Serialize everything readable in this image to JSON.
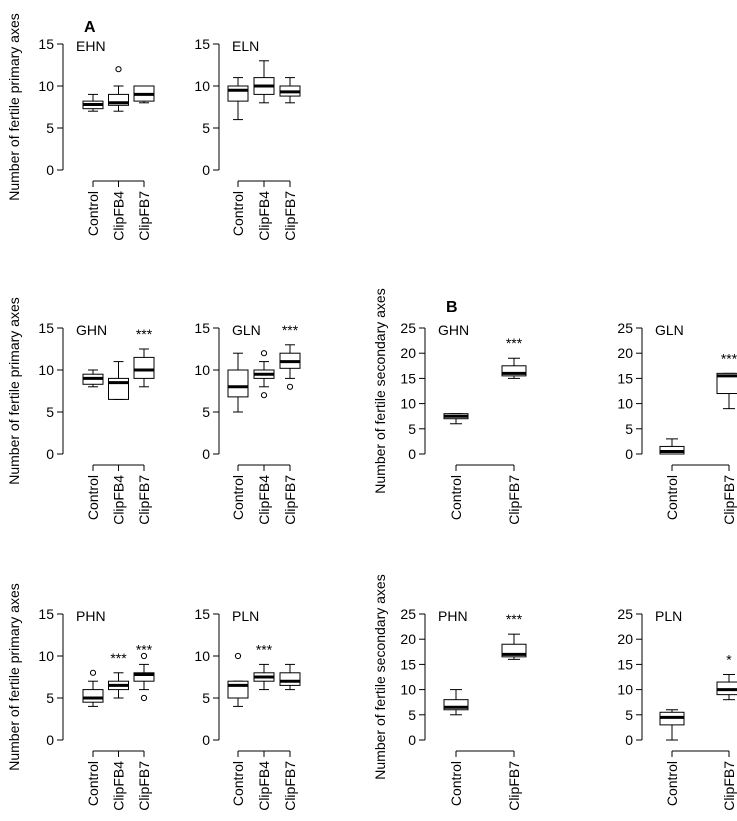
{
  "figure": {
    "section_a_label": "A",
    "section_b_label": "B"
  },
  "chart_data": [
    {
      "type": "box",
      "panel": "EHN",
      "ylim": [
        0,
        15
      ],
      "yticks": [
        0,
        5,
        10,
        15
      ],
      "ylabel": "Number of fertile primary axes",
      "categories": [
        "Control",
        "ClipFB4",
        "ClipFB7"
      ],
      "boxes": [
        {
          "min": 7,
          "q1": 7.3,
          "median": 7.8,
          "q3": 8.2,
          "max": 9,
          "outliers": []
        },
        {
          "min": 7,
          "q1": 7.7,
          "median": 8,
          "q3": 9,
          "max": 10,
          "outliers": [
            12
          ]
        },
        {
          "min": 8,
          "q1": 8.2,
          "median": 9,
          "q3": 10,
          "max": 10,
          "outliers": []
        }
      ],
      "significance": [
        "",
        "",
        ""
      ]
    },
    {
      "type": "box",
      "panel": "ELN",
      "ylim": [
        0,
        15
      ],
      "yticks": [
        0,
        5,
        10,
        15
      ],
      "ylabel": "",
      "categories": [
        "Control",
        "ClipFB4",
        "ClipFB7"
      ],
      "boxes": [
        {
          "min": 6,
          "q1": 8.2,
          "median": 9.5,
          "q3": 10,
          "max": 11,
          "outliers": []
        },
        {
          "min": 8,
          "q1": 9,
          "median": 10,
          "q3": 11,
          "max": 13,
          "outliers": []
        },
        {
          "min": 8,
          "q1": 8.8,
          "median": 9.3,
          "q3": 10,
          "max": 11,
          "outliers": []
        }
      ],
      "significance": [
        "",
        "",
        ""
      ]
    },
    {
      "type": "box",
      "panel": "GHN",
      "ylim": [
        0,
        15
      ],
      "yticks": [
        0,
        5,
        10,
        15
      ],
      "ylabel": "Number of fertile primary axes",
      "categories": [
        "Control",
        "ClipFB4",
        "ClipFB7"
      ],
      "boxes": [
        {
          "min": 8,
          "q1": 8.3,
          "median": 9,
          "q3": 9.5,
          "max": 10,
          "outliers": []
        },
        {
          "min": 6.5,
          "q1": 6.5,
          "median": 8.5,
          "q3": 9,
          "max": 11,
          "outliers": []
        },
        {
          "min": 8,
          "q1": 9,
          "median": 10,
          "q3": 11.5,
          "max": 12.5,
          "outliers": []
        }
      ],
      "significance": [
        "",
        "",
        "***"
      ]
    },
    {
      "type": "box",
      "panel": "GLN",
      "ylim": [
        0,
        15
      ],
      "yticks": [
        0,
        5,
        10,
        15
      ],
      "ylabel": "",
      "categories": [
        "Control",
        "ClipFB4",
        "ClipFB7"
      ],
      "boxes": [
        {
          "min": 5,
          "q1": 6.8,
          "median": 8,
          "q3": 10,
          "max": 12,
          "outliers": []
        },
        {
          "min": 8,
          "q1": 9,
          "median": 9.5,
          "q3": 10,
          "max": 11,
          "outliers": [
            7,
            12
          ]
        },
        {
          "min": 9,
          "q1": 10.2,
          "median": 11,
          "q3": 12,
          "max": 13,
          "outliers": [
            8
          ]
        }
      ],
      "significance": [
        "",
        "",
        "***"
      ]
    },
    {
      "type": "box",
      "panel": "PHN",
      "ylim": [
        0,
        15
      ],
      "yticks": [
        0,
        5,
        10,
        15
      ],
      "ylabel": "Number of fertile primary axes",
      "categories": [
        "Control",
        "ClipFB4",
        "ClipFB7"
      ],
      "boxes": [
        {
          "min": 4,
          "q1": 4.5,
          "median": 5,
          "q3": 6,
          "max": 7,
          "outliers": [
            8
          ]
        },
        {
          "min": 5,
          "q1": 6,
          "median": 6.5,
          "q3": 7,
          "max": 8,
          "outliers": []
        },
        {
          "min": 6,
          "q1": 7,
          "median": 7.8,
          "q3": 8,
          "max": 9,
          "outliers": [
            5,
            10
          ]
        }
      ],
      "significance": [
        "",
        "***",
        "***"
      ]
    },
    {
      "type": "box",
      "panel": "PLN",
      "ylim": [
        0,
        15
      ],
      "yticks": [
        0,
        5,
        10,
        15
      ],
      "ylabel": "",
      "categories": [
        "Control",
        "ClipFB4",
        "ClipFB7"
      ],
      "boxes": [
        {
          "min": 4,
          "q1": 5,
          "median": 6.5,
          "q3": 7,
          "max": 7,
          "outliers": [
            10
          ]
        },
        {
          "min": 6,
          "q1": 7,
          "median": 7.5,
          "q3": 8,
          "max": 9,
          "outliers": []
        },
        {
          "min": 6,
          "q1": 6.5,
          "median": 7,
          "q3": 8,
          "max": 9,
          "outliers": []
        }
      ],
      "significance": [
        "",
        "***",
        ""
      ]
    },
    {
      "type": "box",
      "panel": "GHN",
      "ylim": [
        0,
        25
      ],
      "yticks": [
        0,
        5,
        10,
        15,
        20,
        25
      ],
      "ylabel": "Number of fertile secondary axes",
      "categories": [
        "Control",
        "ClipFB7"
      ],
      "boxes": [
        {
          "min": 6,
          "q1": 7,
          "median": 7.5,
          "q3": 8,
          "max": 8,
          "outliers": []
        },
        {
          "min": 15,
          "q1": 15.5,
          "median": 16,
          "q3": 17.5,
          "max": 19,
          "outliers": []
        }
      ],
      "significance": [
        "",
        "***"
      ]
    },
    {
      "type": "box",
      "panel": "GLN",
      "ylim": [
        0,
        25
      ],
      "yticks": [
        0,
        5,
        10,
        15,
        20,
        25
      ],
      "ylabel": "",
      "categories": [
        "Control",
        "ClipFB7"
      ],
      "boxes": [
        {
          "min": 0,
          "q1": 0,
          "median": 0.5,
          "q3": 1.5,
          "max": 3,
          "outliers": []
        },
        {
          "min": 9,
          "q1": 12,
          "median": 15.5,
          "q3": 16,
          "max": 16,
          "outliers": []
        }
      ],
      "significance": [
        "",
        "***"
      ]
    },
    {
      "type": "box",
      "panel": "PHN",
      "ylim": [
        0,
        25
      ],
      "yticks": [
        0,
        5,
        10,
        15,
        20,
        25
      ],
      "ylabel": "Number of fertile secondary axes",
      "categories": [
        "Control",
        "ClipFB7"
      ],
      "boxes": [
        {
          "min": 5,
          "q1": 6,
          "median": 6.5,
          "q3": 8,
          "max": 10,
          "outliers": []
        },
        {
          "min": 16,
          "q1": 16.5,
          "median": 17,
          "q3": 19,
          "max": 21,
          "outliers": []
        }
      ],
      "significance": [
        "",
        "***"
      ]
    },
    {
      "type": "box",
      "panel": "PLN",
      "ylim": [
        0,
        25
      ],
      "yticks": [
        0,
        5,
        10,
        15,
        20,
        25
      ],
      "ylabel": "",
      "categories": [
        "Control",
        "ClipFB7"
      ],
      "boxes": [
        {
          "min": 0,
          "q1": 3,
          "median": 4.5,
          "q3": 5.5,
          "max": 6,
          "outliers": []
        },
        {
          "min": 8,
          "q1": 9,
          "median": 10,
          "q3": 11.5,
          "max": 13,
          "outliers": []
        }
      ],
      "significance": [
        "",
        "*"
      ]
    }
  ]
}
